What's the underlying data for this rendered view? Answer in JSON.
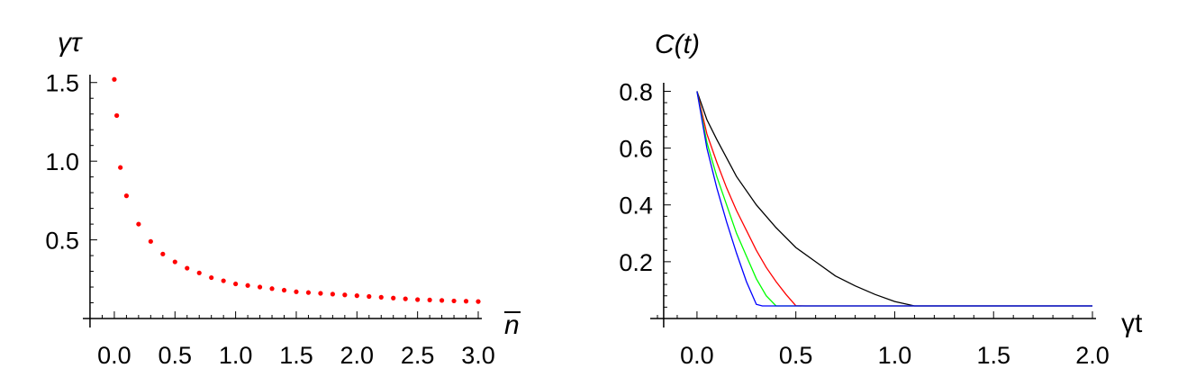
{
  "chart_data": [
    {
      "type": "scatter",
      "ylabel": "γτ",
      "xlabel": "n",
      "xlabel_overline": true,
      "xlim": [
        -0.2,
        3.0
      ],
      "ylim": [
        0.0,
        1.55
      ],
      "xticks": [
        "0.0",
        "0.5",
        "1.0",
        "1.5",
        "2.0",
        "2.5",
        "3.0"
      ],
      "xtick_values": [
        0.0,
        0.5,
        1.0,
        1.5,
        2.0,
        2.5,
        3.0
      ],
      "yticks": [
        "0.5",
        "1.0",
        "1.5"
      ],
      "ytick_values": [
        0.5,
        1.0,
        1.5
      ],
      "grid": false,
      "point_color": "#ff0000",
      "series": [
        {
          "x": [
            0.0,
            0.02,
            0.05,
            0.1,
            0.2,
            0.3,
            0.4,
            0.5,
            0.6,
            0.7,
            0.8,
            0.9,
            1.0,
            1.1,
            1.2,
            1.3,
            1.4,
            1.5,
            1.6,
            1.7,
            1.8,
            1.9,
            2.0,
            2.1,
            2.2,
            2.3,
            2.4,
            2.5,
            2.6,
            2.7,
            2.8,
            2.9,
            3.0
          ],
          "y": [
            1.52,
            1.29,
            0.96,
            0.78,
            0.6,
            0.49,
            0.41,
            0.36,
            0.32,
            0.29,
            0.26,
            0.24,
            0.22,
            0.21,
            0.2,
            0.19,
            0.18,
            0.17,
            0.165,
            0.16,
            0.155,
            0.15,
            0.145,
            0.14,
            0.135,
            0.13,
            0.125,
            0.12,
            0.118,
            0.115,
            0.112,
            0.11,
            0.108
          ]
        }
      ]
    },
    {
      "type": "line",
      "ylabel": "C(t)",
      "xlabel": "γt",
      "xlim": [
        -0.2,
        2.0
      ],
      "ylim": [
        0.0,
        0.83
      ],
      "xticks": [
        "0.0",
        "0.5",
        "1.0",
        "1.5",
        "2.0"
      ],
      "xtick_values": [
        0.0,
        0.5,
        1.0,
        1.5,
        2.0
      ],
      "yticks": [
        "0.2",
        "0.4",
        "0.6",
        "0.8"
      ],
      "ytick_values": [
        0.2,
        0.4,
        0.6,
        0.8
      ],
      "grid": false,
      "series": [
        {
          "color": "#000000",
          "x": [
            0.0,
            0.05,
            0.1,
            0.2,
            0.3,
            0.4,
            0.5,
            0.6,
            0.7,
            0.8,
            0.9,
            1.0,
            1.1,
            1.2,
            1.3,
            1.4,
            1.5,
            2.0
          ],
          "y": [
            0.8,
            0.7,
            0.63,
            0.5,
            0.4,
            0.32,
            0.25,
            0.2,
            0.15,
            0.115,
            0.085,
            0.06,
            0.04,
            0.025,
            0.012,
            0.004,
            0.0,
            0.0
          ]
        },
        {
          "color": "#ff0000",
          "x": [
            0.0,
            0.05,
            0.1,
            0.15,
            0.2,
            0.25,
            0.3,
            0.35,
            0.4,
            0.45,
            0.5,
            0.55,
            0.6,
            2.0
          ],
          "y": [
            0.8,
            0.65,
            0.55,
            0.46,
            0.38,
            0.31,
            0.24,
            0.18,
            0.13,
            0.085,
            0.045,
            0.015,
            0.0,
            0.0
          ]
        },
        {
          "color": "#00ff00",
          "x": [
            0.0,
            0.05,
            0.1,
            0.15,
            0.2,
            0.25,
            0.3,
            0.35,
            0.4,
            0.42,
            2.0
          ],
          "y": [
            0.8,
            0.62,
            0.5,
            0.4,
            0.3,
            0.22,
            0.14,
            0.08,
            0.025,
            0.0,
            0.0
          ]
        },
        {
          "color": "#0000ff",
          "x": [
            0.0,
            0.05,
            0.1,
            0.15,
            0.2,
            0.25,
            0.3,
            0.33,
            2.0
          ],
          "y": [
            0.8,
            0.6,
            0.46,
            0.34,
            0.23,
            0.13,
            0.05,
            0.0,
            0.0
          ]
        }
      ]
    }
  ]
}
